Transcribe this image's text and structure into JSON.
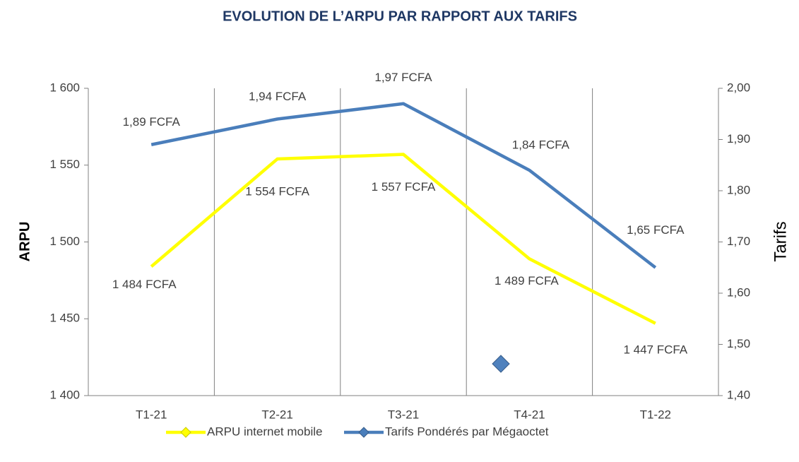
{
  "chart_data": {
    "type": "line",
    "title": "EVOLUTION DE L’ARPU PAR RAPPORT AUX TARIFS",
    "y_label": "ARPU",
    "y2_label": "Tarifs",
    "categories": [
      "T1-21",
      "T2-21",
      "T3-21",
      "T4-21",
      "T1-22"
    ],
    "series": [
      {
        "name": "ARPU internet mobile",
        "color": "#ffff00",
        "values": [
          1484,
          1554,
          1557,
          1489,
          1447
        ],
        "value_labels": [
          "1 484 FCFA",
          "1 554 FCFA",
          "1 557 FCFA",
          "1 489 FCFA",
          "1 447 FCFA"
        ]
      },
      {
        "name": "Tarifs Pondérés par Mégaoctet",
        "color": "#4a7ebb",
        "axis": "y2",
        "values": [
          1.89,
          1.94,
          1.97,
          1.84,
          1.65
        ],
        "value_labels": [
          "1,89 FCFA",
          "1,94 FCFA",
          "1,97 FCFA",
          "1,84 FCFA",
          "1,65 FCFA"
        ]
      }
    ],
    "ylim": [
      1400,
      1600
    ],
    "yticks": [
      {
        "value": 1400,
        "label": "1 400"
      },
      {
        "value": 1450,
        "label": "1 450"
      },
      {
        "value": 1500,
        "label": "1 500"
      },
      {
        "value": 1550,
        "label": "1 550"
      },
      {
        "value": 1600,
        "label": "1 600"
      }
    ],
    "y2lim": [
      1.4,
      2.0
    ],
    "y2ticks": [
      {
        "value": 1.4,
        "label": "1,40"
      },
      {
        "value": 1.5,
        "label": "1,50"
      },
      {
        "value": 1.6,
        "label": "1,60"
      },
      {
        "value": 1.7,
        "label": "1,70"
      },
      {
        "value": 1.8,
        "label": "1,80"
      },
      {
        "value": 1.9,
        "label": "1,90"
      },
      {
        "value": 2.0,
        "label": "2,00"
      }
    ],
    "grid": "vertical",
    "legend": "bottom"
  }
}
